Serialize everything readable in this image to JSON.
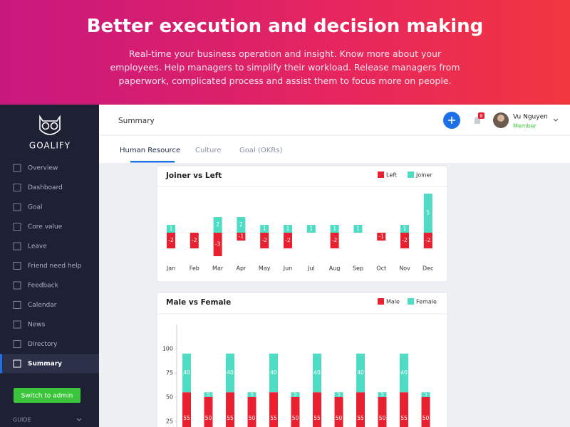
{
  "hero": {
    "title": "Better execution and decision making",
    "subtitle": "Real-time your business operation and insight. Know more about your employees. Help managers to simplify their workload. Release managers from paperwork, complicated process and assist them to focus more on people."
  },
  "sidebar": {
    "brand": "GOALIFY",
    "menu": [
      "Overview",
      "Dashboard",
      "Goal",
      "Core value",
      "Leave",
      "Friend need help",
      "Feedback",
      "Calendar",
      "News",
      "Directory",
      "Summary"
    ],
    "active": 10,
    "button": "Switch to admin",
    "guide": "GUIDE"
  },
  "topbar": {
    "title": "Summary",
    "notifications": "8",
    "user": {
      "name": "Vu Nguyen",
      "role": "Member"
    }
  },
  "tabs": [
    "Human Resource",
    "Culture",
    "Goal (OKRs)"
  ],
  "active_tab": 0,
  "chart_data": [
    {
      "type": "bar",
      "title": "Joiner vs Left",
      "categories": [
        "Jan",
        "Feb",
        "Mar",
        "Apr",
        "May",
        "Jun",
        "Jul",
        "Aug",
        "Sep",
        "Oct",
        "Nov",
        "Dec"
      ],
      "series": [
        {
          "name": "Left",
          "color": "#e8202f",
          "values": [
            -2,
            -2,
            -3,
            -1,
            -2,
            -2,
            null,
            -2,
            null,
            -1,
            -2,
            -2
          ]
        },
        {
          "name": "Joiner",
          "color": "#4fdcc4",
          "values": [
            1,
            null,
            2,
            2,
            1,
            1,
            1,
            1,
            1,
            null,
            1,
            5
          ]
        }
      ]
    },
    {
      "type": "stacked_bar",
      "title": "Male vs Female",
      "series": [
        {
          "name": "Male",
          "color": "#e8202f",
          "values": [
            55,
            50,
            55,
            50,
            55,
            50,
            55,
            50,
            55,
            50,
            55,
            50
          ]
        },
        {
          "name": "Female",
          "color": "#4fdcc4",
          "values": [
            40,
            5,
            40,
            5,
            40,
            5,
            40,
            5,
            40,
            5,
            40,
            5
          ]
        }
      ],
      "ylim": [
        0,
        125
      ],
      "yticks": [
        25,
        50,
        75,
        100
      ]
    }
  ]
}
